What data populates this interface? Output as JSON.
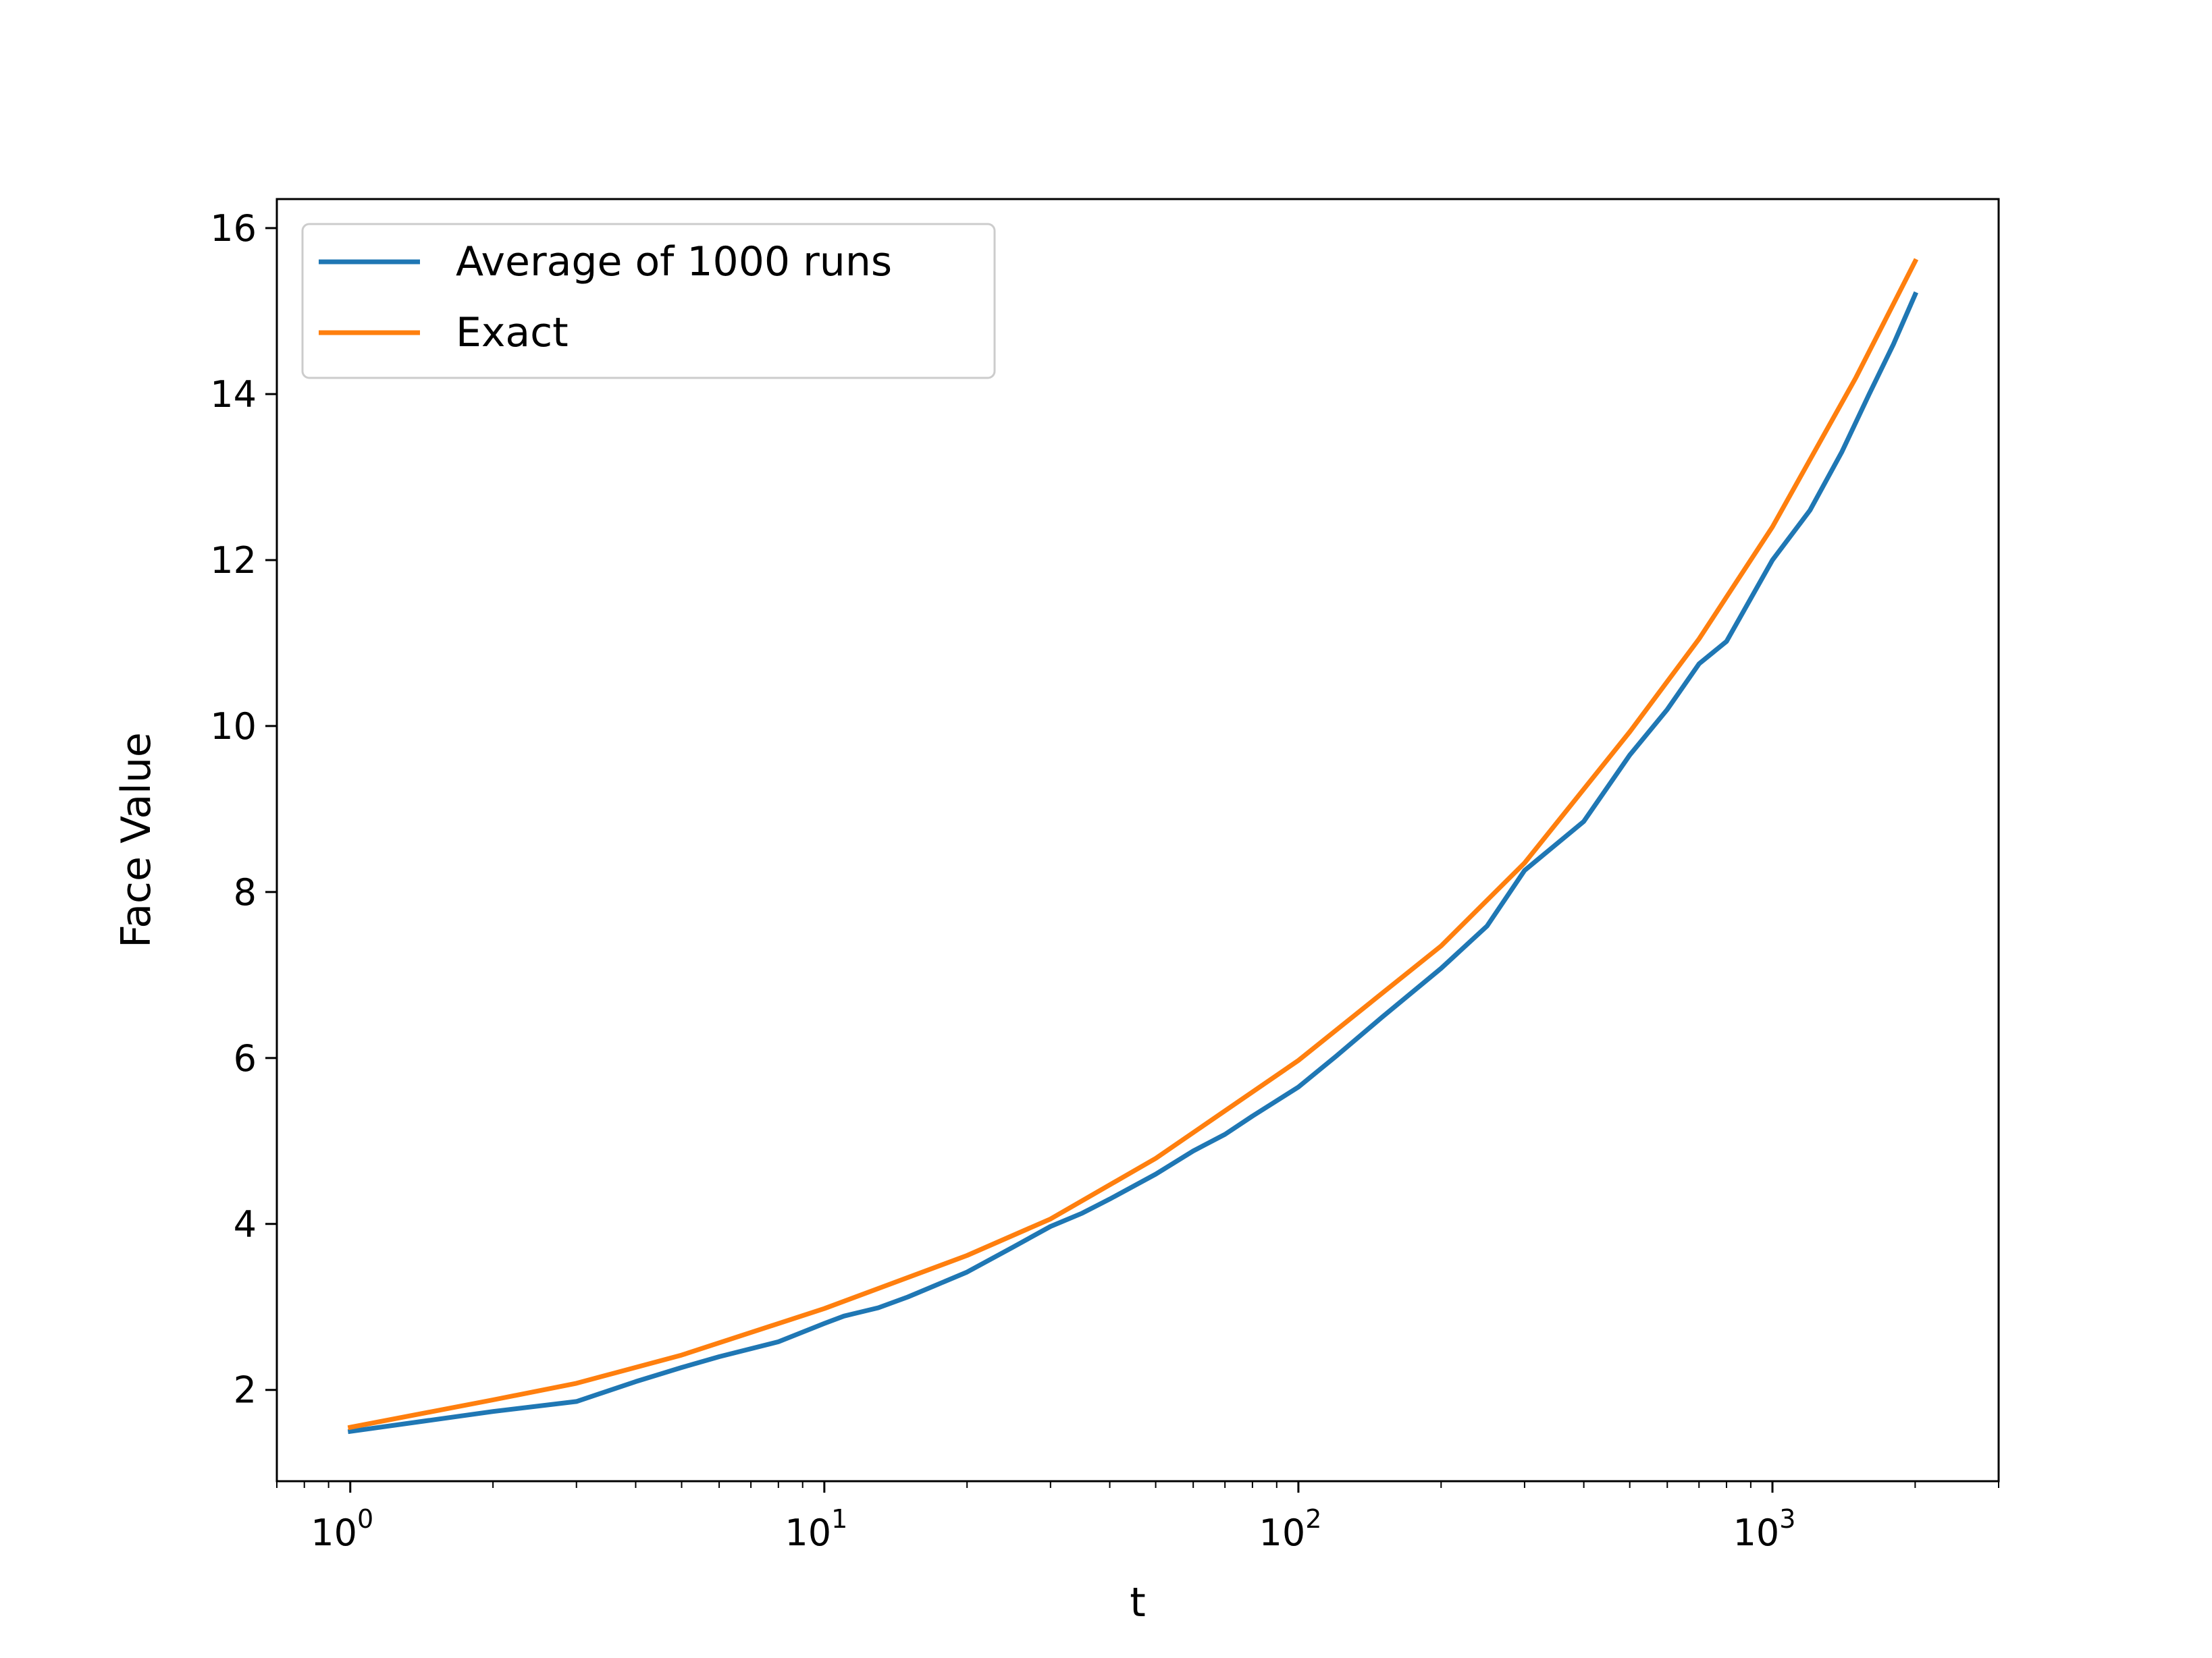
{
  "chart_data": {
    "type": "line",
    "title": "",
    "xlabel": "t",
    "ylabel": "Face Value",
    "xscale": "log",
    "xlim": [
      0.7,
      3000
    ],
    "ylim": [
      0.9,
      16.35
    ],
    "xticks": [
      {
        "value": 1,
        "base": "10",
        "exp": "0"
      },
      {
        "value": 10,
        "base": "10",
        "exp": "1"
      },
      {
        "value": 100,
        "base": "10",
        "exp": "2"
      },
      {
        "value": 1000,
        "base": "10",
        "exp": "3"
      }
    ],
    "yticks": [
      "2",
      "4",
      "6",
      "8",
      "10",
      "12",
      "14",
      "16"
    ],
    "grid": false,
    "legend": {
      "position": "upper-left"
    },
    "series": [
      {
        "name": "Average of 1000 runs",
        "color": "#1f77b4",
        "x": [
          1,
          2,
          3,
          4,
          5,
          6,
          8,
          10,
          11,
          13,
          15,
          17,
          20,
          25,
          30,
          35,
          40,
          50,
          60,
          70,
          80,
          100,
          120,
          150,
          200,
          250,
          300,
          400,
          500,
          600,
          700,
          800,
          1000,
          1200,
          1400,
          1600,
          1800,
          2000
        ],
        "y": [
          1.5,
          1.74,
          1.86,
          2.1,
          2.27,
          2.4,
          2.58,
          2.8,
          2.89,
          2.99,
          3.12,
          3.25,
          3.42,
          3.72,
          3.97,
          4.13,
          4.3,
          4.6,
          4.88,
          5.08,
          5.3,
          5.65,
          6.02,
          6.49,
          7.08,
          7.59,
          8.26,
          8.85,
          9.65,
          10.2,
          10.75,
          11.02,
          12.0,
          12.6,
          13.3,
          14.0,
          14.6,
          15.2
        ]
      },
      {
        "name": "Exact",
        "color": "#ff7f0e",
        "x": [
          1,
          2,
          3,
          5,
          10,
          20,
          30,
          50,
          100,
          200,
          300,
          500,
          700,
          1000,
          1500,
          2000
        ],
        "y": [
          1.55,
          1.88,
          2.08,
          2.42,
          2.98,
          3.62,
          4.06,
          4.79,
          5.97,
          7.35,
          8.35,
          9.93,
          11.05,
          12.4,
          14.2,
          15.6
        ]
      }
    ]
  }
}
